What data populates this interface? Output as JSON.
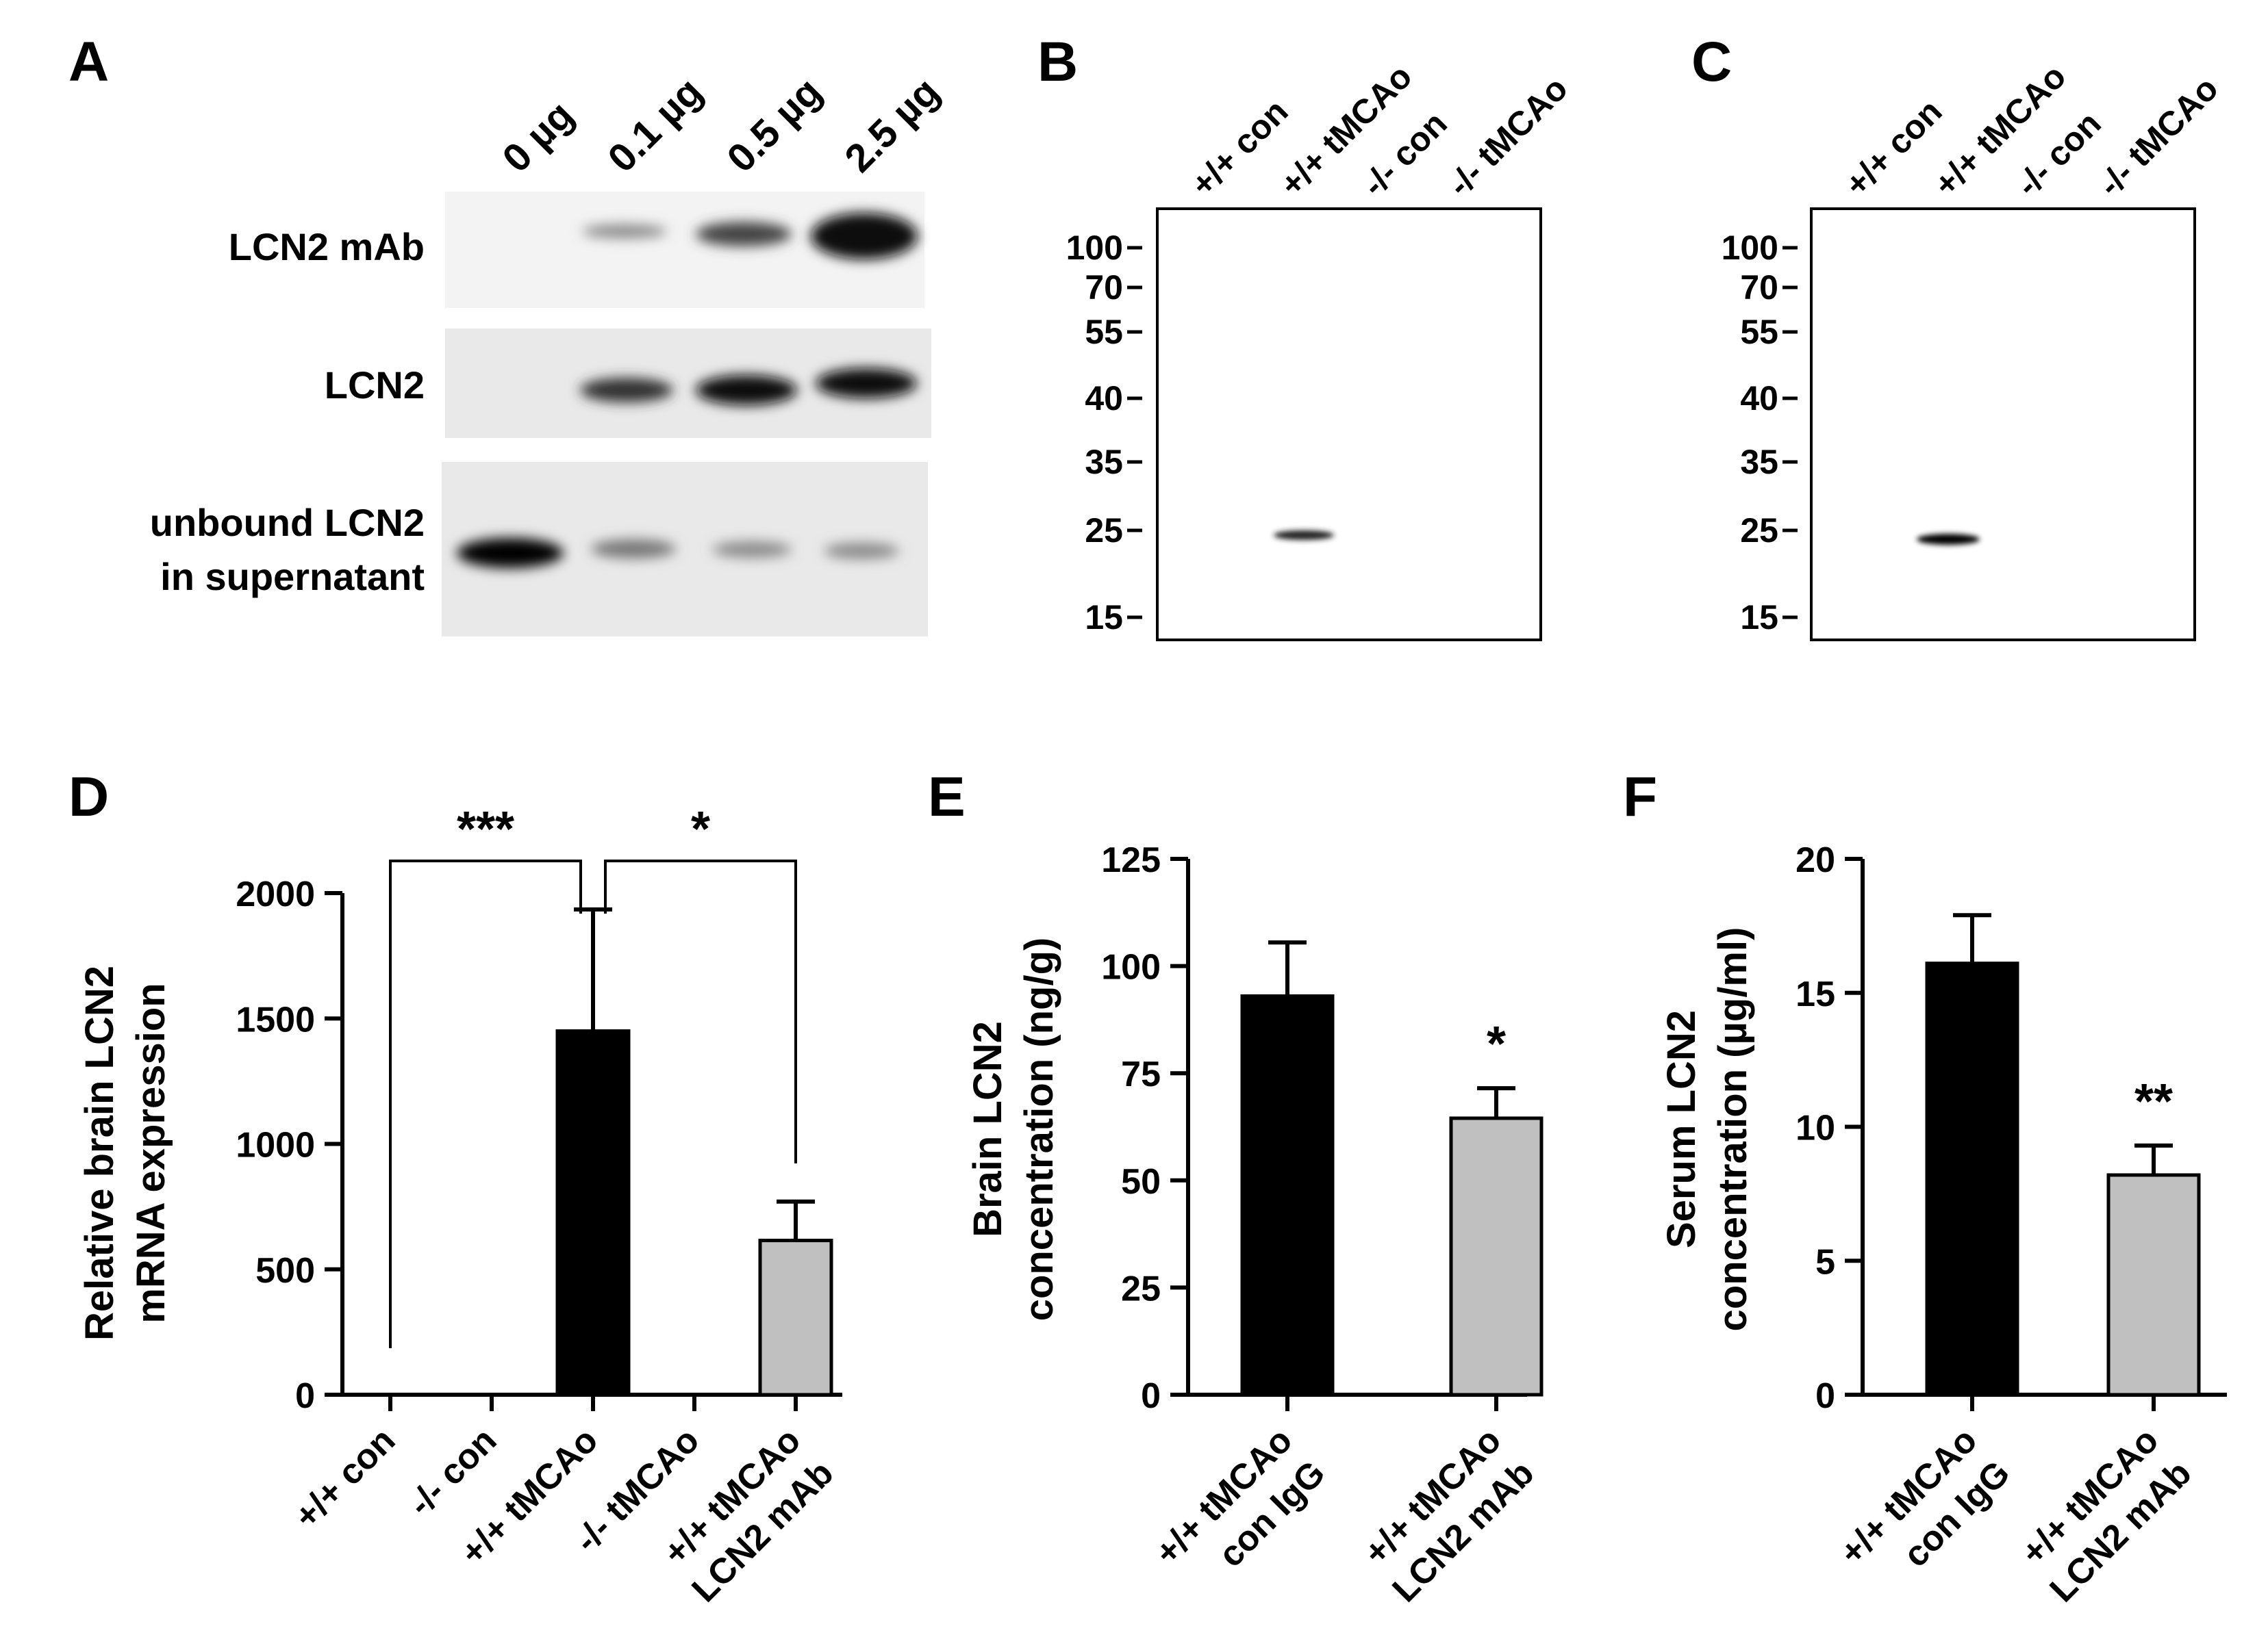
{
  "panels": {
    "A": {
      "label": "A",
      "lane_labels": [
        "0 µg",
        "0.1 µg",
        "0.5 µg",
        "2.5 µg"
      ],
      "row_labels": [
        "LCN2 mAb",
        "LCN2",
        "unbound LCN2",
        "in supernatant"
      ]
    },
    "B": {
      "label": "B",
      "lane_labels": [
        "+/+ con",
        "+/+ tMCAo",
        "-/- con",
        "-/- tMCAo"
      ],
      "markers": [
        "100",
        "70",
        "55",
        "40",
        "35",
        "25",
        "15"
      ]
    },
    "C": {
      "label": "C",
      "lane_labels": [
        "+/+ con",
        "+/+ tMCAo",
        "-/- con",
        "-/- tMCAo"
      ],
      "markers": [
        "100",
        "70",
        "55",
        "40",
        "35",
        "25",
        "15"
      ]
    },
    "D": {
      "label": "D",
      "ylabel_line1": "Relative brain LCN2",
      "ylabel_line2": "mRNA expression"
    },
    "E": {
      "label": "E",
      "ylabel_line1": "Brain LCN2",
      "ylabel_line2": "concentration (ng/g)"
    },
    "F": {
      "label": "F",
      "ylabel_line1": "Serum LCN2",
      "ylabel_line2": "concentration (µg/ml)"
    }
  },
  "colors": {
    "treated_bar": "#000000",
    "mab_bar": "#c0c0c0",
    "blot_bg": "#e9e9e9"
  },
  "chart_data": [
    {
      "id": "D",
      "type": "bar",
      "categories": [
        [
          "+/+ con"
        ],
        [
          "-/- con"
        ],
        [
          "+/+ tMCAo"
        ],
        [
          "-/- tMCAo"
        ],
        [
          "+/+ tMCAo",
          "LCN2 mAb"
        ]
      ],
      "values": [
        0,
        0,
        1450,
        0,
        615
      ],
      "errors": [
        0,
        0,
        485,
        0,
        155
      ],
      "bar_colors": [
        "#000000",
        "#000000",
        "#000000",
        "#000000",
        "#c0c0c0"
      ],
      "yticks": [
        "0",
        "500",
        "1000",
        "1500",
        "2000"
      ],
      "ylim": [
        0,
        2000
      ],
      "significance": [
        {
          "from": 0,
          "to": 2,
          "label": "***"
        },
        {
          "from": 2,
          "to": 4,
          "label": "*"
        }
      ]
    },
    {
      "id": "E",
      "type": "bar",
      "categories": [
        [
          "+/+ tMCAo",
          "con IgG"
        ],
        [
          "+/+ tMCAo",
          "LCN2 mAb"
        ]
      ],
      "values": [
        93,
        64.5
      ],
      "errors": [
        12.5,
        7
      ],
      "bar_colors": [
        "#000000",
        "#c0c0c0"
      ],
      "yticks": [
        "0",
        "25",
        "50",
        "75",
        "100",
        "125"
      ],
      "ylim": [
        0,
        125
      ],
      "stars": [
        "",
        "*"
      ]
    },
    {
      "id": "F",
      "type": "bar",
      "categories": [
        [
          "+/+ tMCAo",
          "con IgG"
        ],
        [
          "+/+ tMCAo",
          "LCN2 mAb"
        ]
      ],
      "values": [
        16.1,
        8.2
      ],
      "errors": [
        1.8,
        1.1
      ],
      "bar_colors": [
        "#000000",
        "#c0c0c0"
      ],
      "yticks": [
        "0",
        "5",
        "10",
        "15",
        "20"
      ],
      "ylim": [
        0,
        20
      ],
      "stars": [
        "",
        "**"
      ]
    }
  ]
}
